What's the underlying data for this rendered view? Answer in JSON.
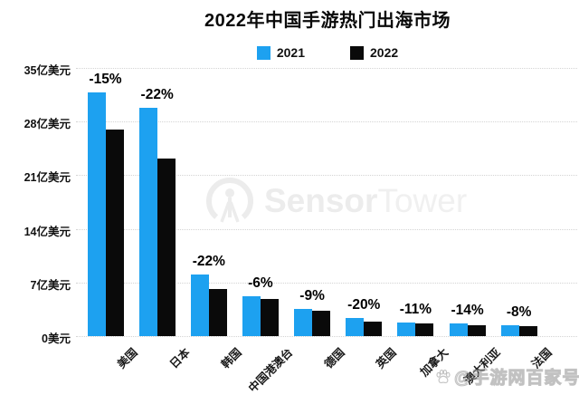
{
  "page": {
    "title": "2022年中国手游热门出海市场"
  },
  "watermarks": {
    "center_logo_bold": "Sensor",
    "center_logo_light": "Tower",
    "credit": "@手游网百家号"
  },
  "chart_data": {
    "type": "bar",
    "title": "2022年中国手游热门出海市场",
    "unit": "亿美元",
    "categories": [
      "美国",
      "日本",
      "韩国",
      "中国港澳台",
      "德国",
      "英国",
      "加拿大",
      "澳大利亚",
      "法国"
    ],
    "series": [
      {
        "name": "2021",
        "color": "#1da1f0",
        "values": [
          31.8,
          29.8,
          8.0,
          5.2,
          3.6,
          2.4,
          1.8,
          1.6,
          1.4
        ]
      },
      {
        "name": "2022",
        "color": "#0a0a0a",
        "values": [
          27.0,
          23.2,
          6.2,
          4.9,
          3.3,
          1.9,
          1.6,
          1.4,
          1.3
        ]
      }
    ],
    "change_labels": [
      "-15%",
      "-22%",
      "-22%",
      "-6%",
      "-9%",
      "-20%",
      "-11%",
      "-14%",
      "-8%"
    ],
    "y_ticks": [
      {
        "value": 0,
        "label": "0美元"
      },
      {
        "value": 7,
        "label": "7亿美元"
      },
      {
        "value": 14,
        "label": "14亿美元"
      },
      {
        "value": 21,
        "label": "21亿美元"
      },
      {
        "value": 28,
        "label": "28亿美元"
      },
      {
        "value": 35,
        "label": "35亿美元"
      }
    ],
    "ylim": [
      0,
      35
    ],
    "grid": "horizontal-dotted",
    "legend_position": "top-center",
    "xlabel_rotation": -45
  }
}
